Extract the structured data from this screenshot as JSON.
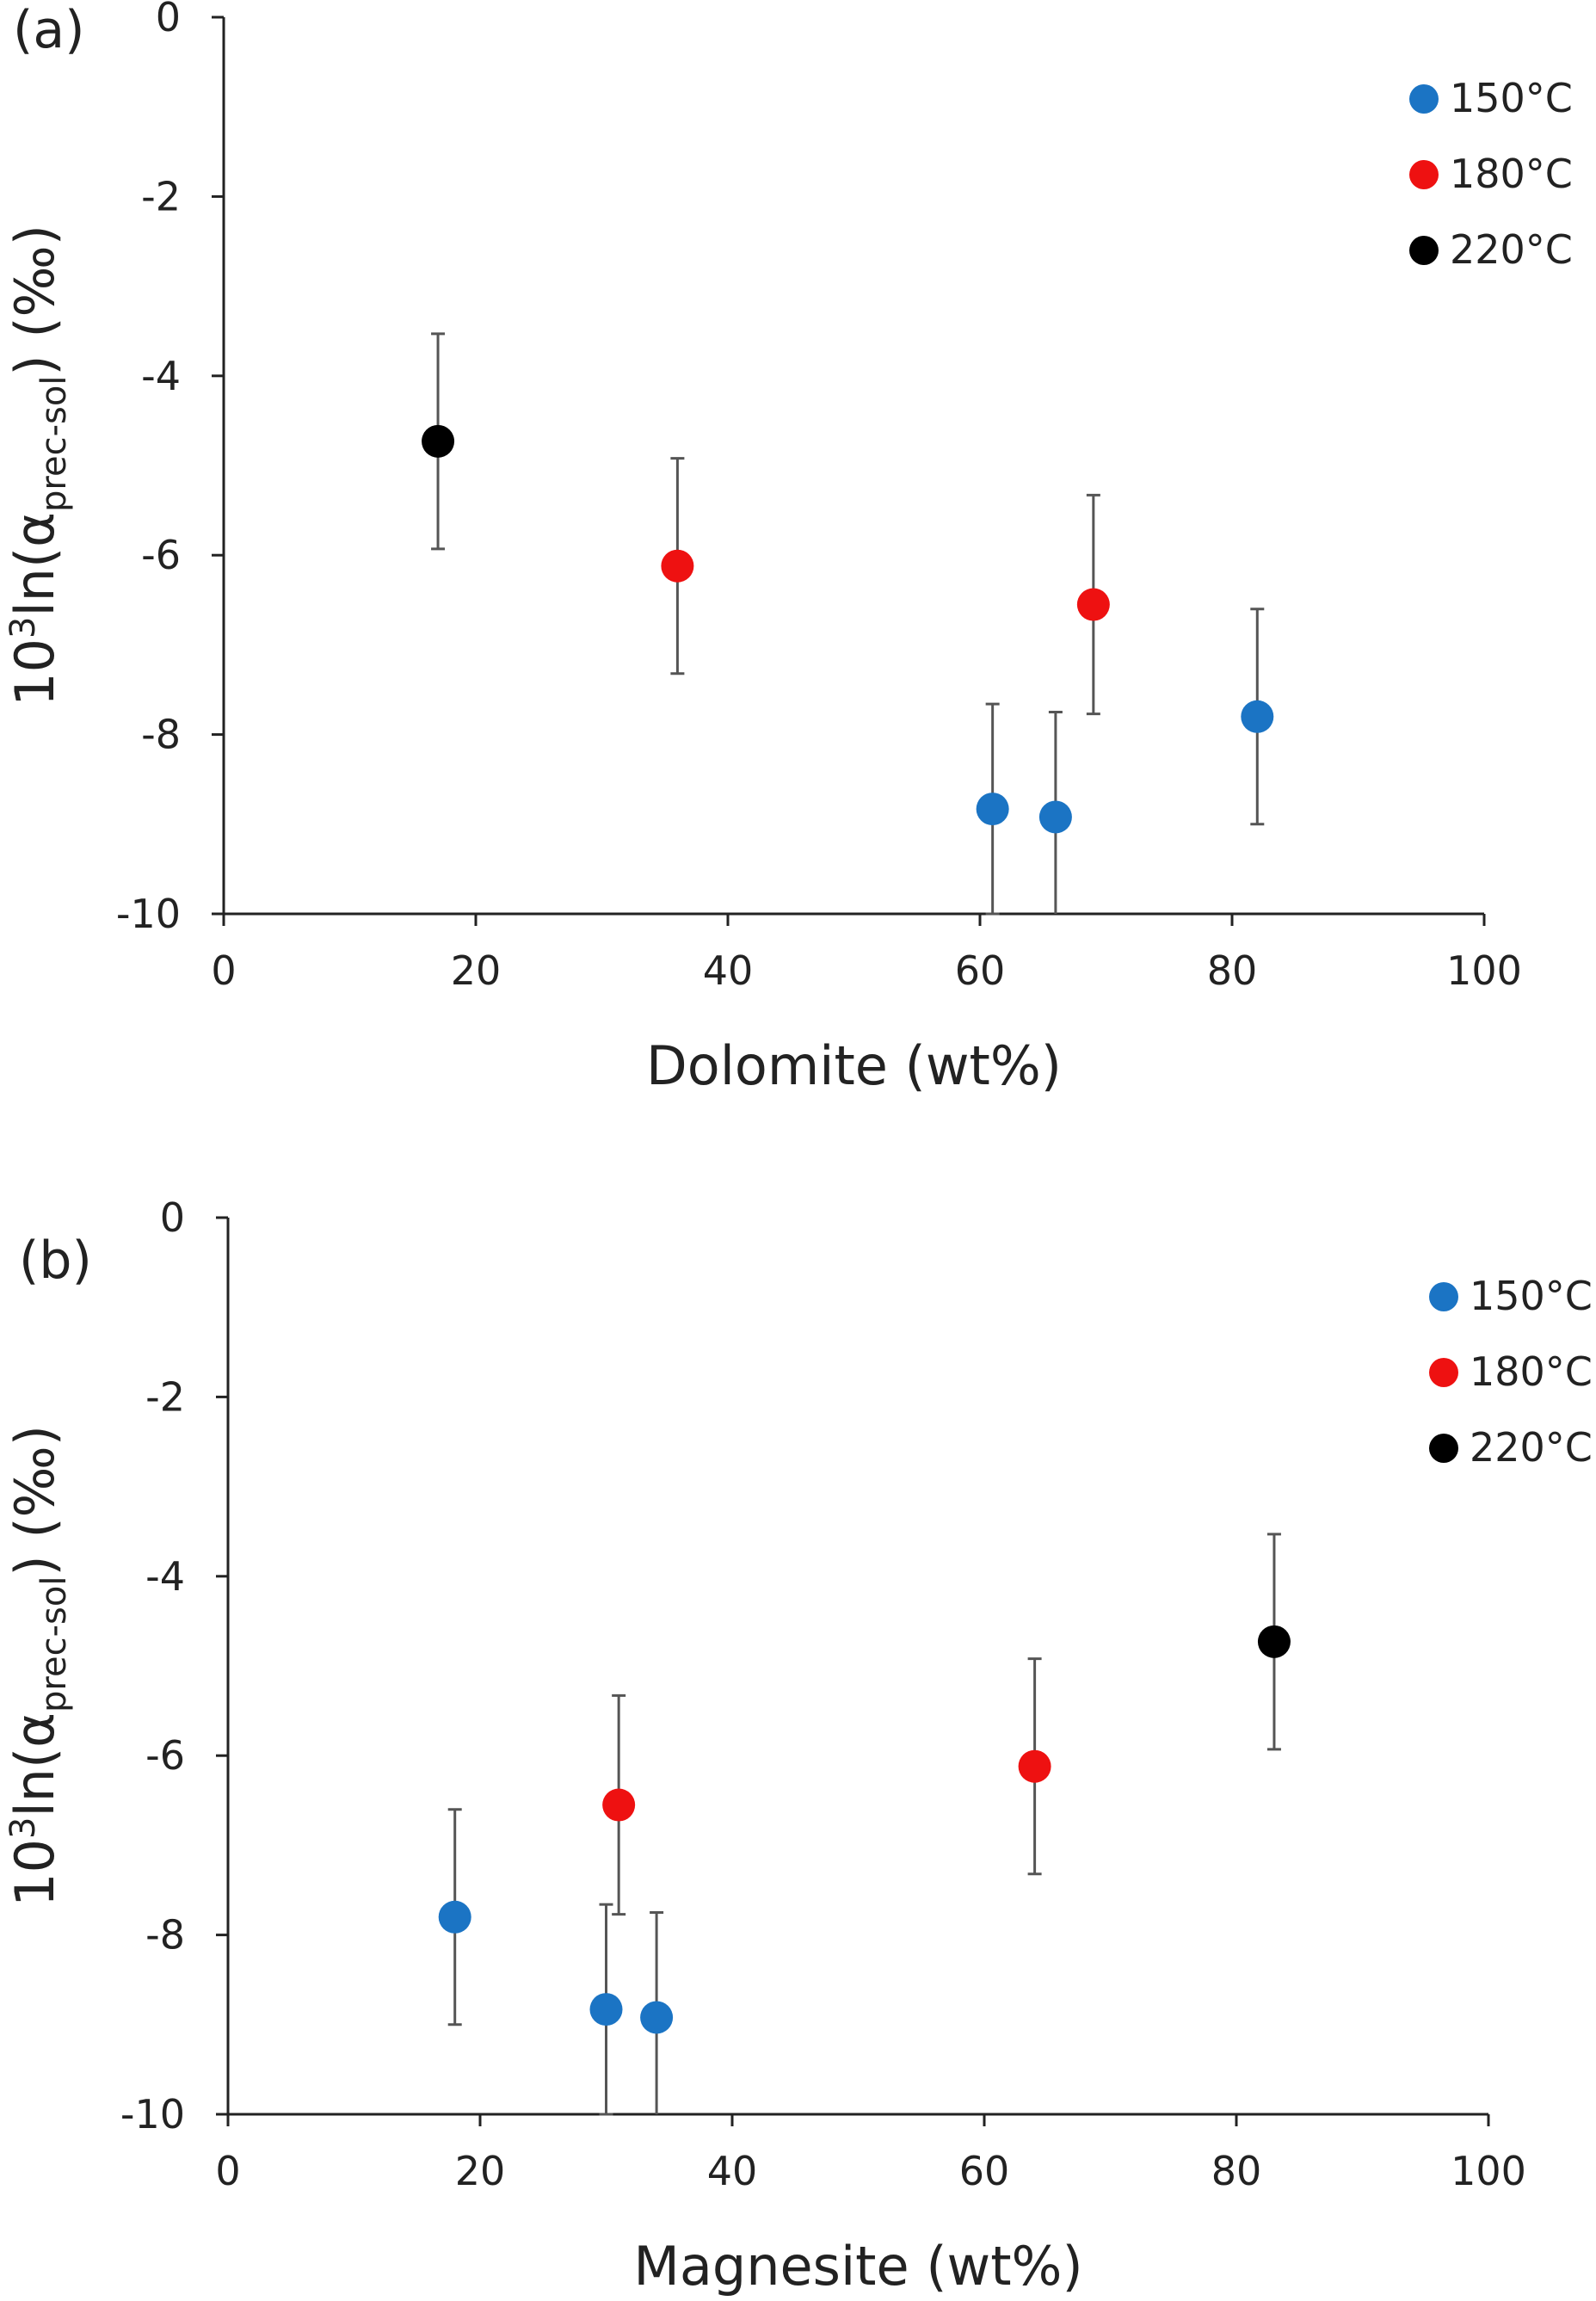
{
  "chart_data": [
    {
      "panel": "(a)",
      "type": "scatter",
      "xlabel": "Dolomite (wt%)",
      "ylabel": "10³ln(α prec-sol) (‰)",
      "ylabel_parts": {
        "prefix": "10",
        "sup": "3",
        "mid": "ln(α",
        "sub": "prec-sol",
        "suffix": ") (‰)"
      },
      "xlim": [
        0,
        100
      ],
      "ylim": [
        -10,
        0
      ],
      "x_ticks": [
        "0",
        "20",
        "40",
        "60",
        "80",
        "100"
      ],
      "y_ticks": [
        "0",
        "-2",
        "-4",
        "-6",
        "-8",
        "-10"
      ],
      "grid": false,
      "legend_position": "top-right",
      "series": [
        {
          "name": "150°C",
          "color": "#1b74c4",
          "points": [
            {
              "x": 61,
              "y": -8.83,
              "err": 1.17
            },
            {
              "x": 66,
              "y": -8.92,
              "err": 1.17
            },
            {
              "x": 82,
              "y": -7.8,
              "err": 1.2
            }
          ]
        },
        {
          "name": "180°C",
          "color": "#ee1111",
          "points": [
            {
              "x": 36,
              "y": -6.12,
              "err": 1.2
            },
            {
              "x": 69,
              "y": -6.55,
              "err": 1.22
            }
          ]
        },
        {
          "name": "220°C",
          "color": "#000000",
          "points": [
            {
              "x": 17,
              "y": -4.73,
              "err": 1.2
            }
          ]
        }
      ]
    },
    {
      "panel": "(b)",
      "type": "scatter",
      "xlabel": "Magnesite (wt%)",
      "ylabel": "10³ln(α prec-sol) (‰)",
      "ylabel_parts": {
        "prefix": "10",
        "sup": "3",
        "mid": "ln(α",
        "sub": "prec-sol",
        "suffix": ") (‰)"
      },
      "xlim": [
        0,
        100
      ],
      "ylim": [
        -10,
        0
      ],
      "x_ticks": [
        "0",
        "20",
        "40",
        "60",
        "80",
        "100"
      ],
      "y_ticks": [
        "0",
        "-2",
        "-4",
        "-6",
        "-8",
        "-10"
      ],
      "grid": false,
      "legend_position": "top-right",
      "series": [
        {
          "name": "150°C",
          "color": "#1b74c4",
          "points": [
            {
              "x": 18,
              "y": -7.8,
              "err": 1.2
            },
            {
              "x": 30,
              "y": -8.83,
              "err": 1.17
            },
            {
              "x": 34,
              "y": -8.92,
              "err": 1.17
            }
          ]
        },
        {
          "name": "180°C",
          "color": "#ee1111",
          "points": [
            {
              "x": 31,
              "y": -6.55,
              "err": 1.22
            },
            {
              "x": 64,
              "y": -6.12,
              "err": 1.2
            }
          ]
        },
        {
          "name": "220°C",
          "color": "#000000",
          "points": [
            {
              "x": 83,
              "y": -4.73,
              "err": 1.2
            }
          ]
        }
      ]
    }
  ]
}
